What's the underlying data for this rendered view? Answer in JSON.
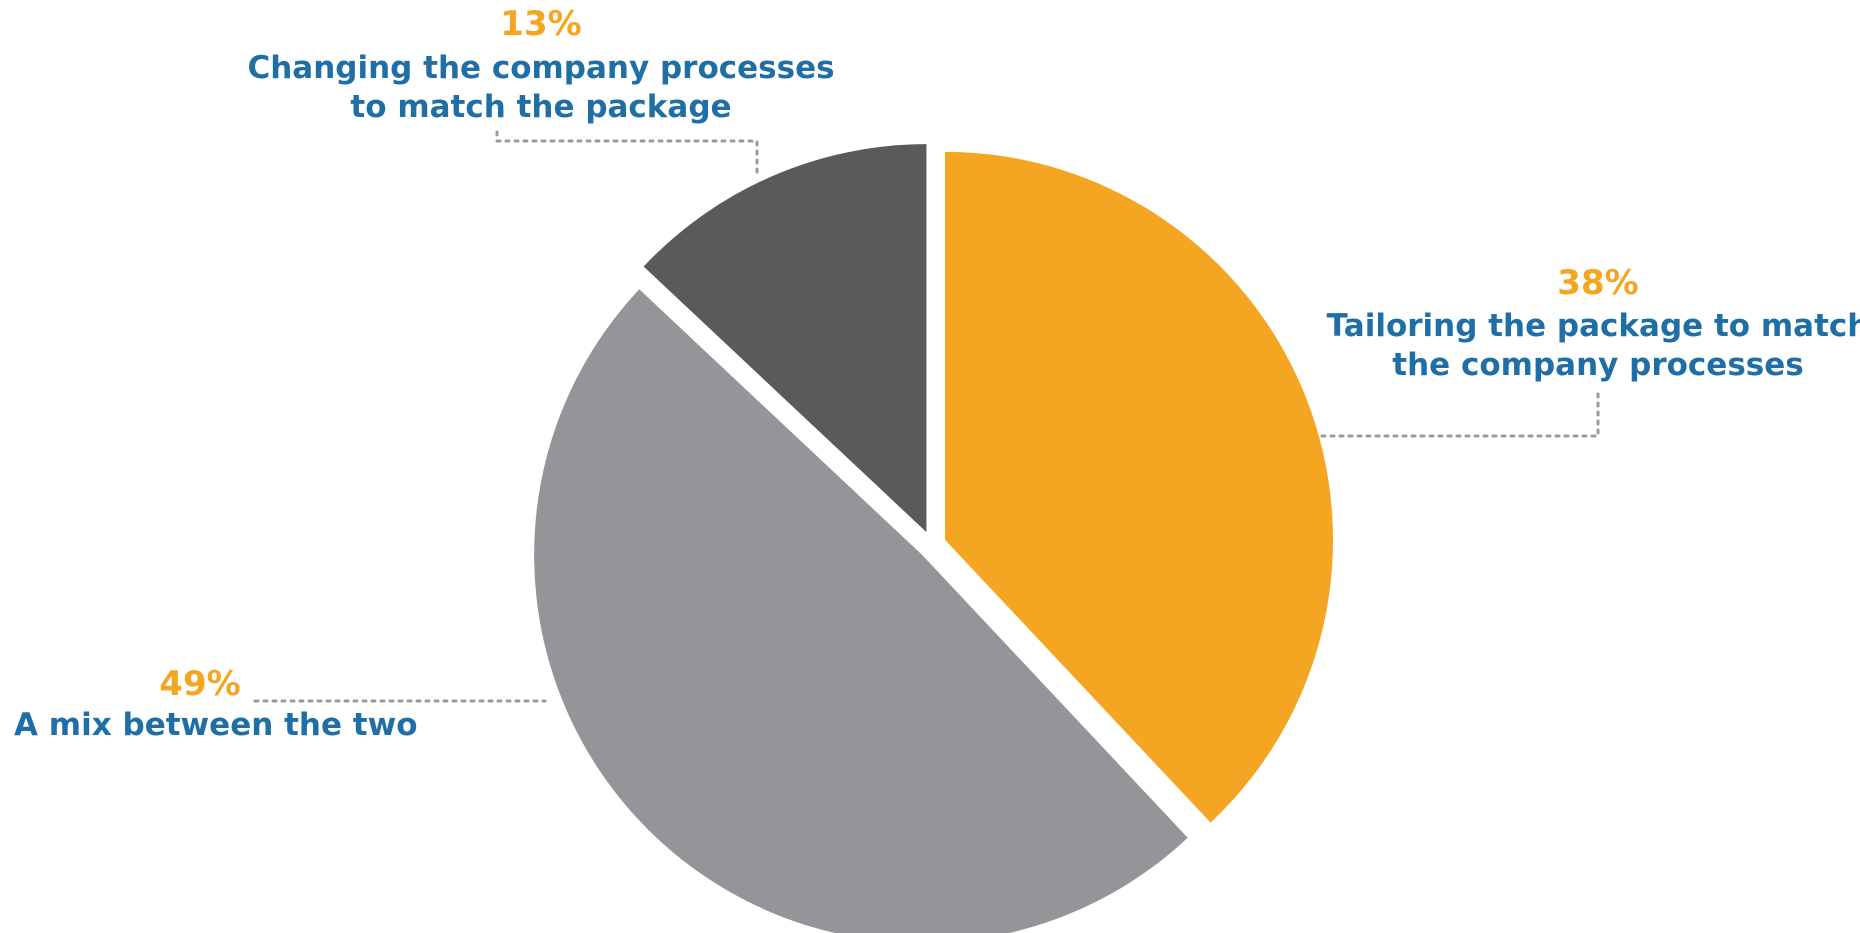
{
  "chart_data": {
    "type": "pie",
    "slices": [
      {
        "label_lines": [
          "Tailoring the package to match",
          "the company processes"
        ],
        "value": 38,
        "value_label": "38%",
        "color": "#F4A623"
      },
      {
        "label_lines": [
          "A mix between the two"
        ],
        "value": 49,
        "value_label": "49%",
        "color": "#959498"
      },
      {
        "label_lines": [
          "Changing the company processes",
          "to match the package"
        ],
        "value": 13,
        "value_label": "13%",
        "color": "#5A5A5C"
      }
    ],
    "start_angle_deg": 0,
    "direction": "clockwise",
    "exploded": true,
    "legend": "none"
  },
  "colors": {
    "percent_text": "#F4A623",
    "label_text": "#1F6FA6",
    "leader_line": "#9A9A9A"
  }
}
